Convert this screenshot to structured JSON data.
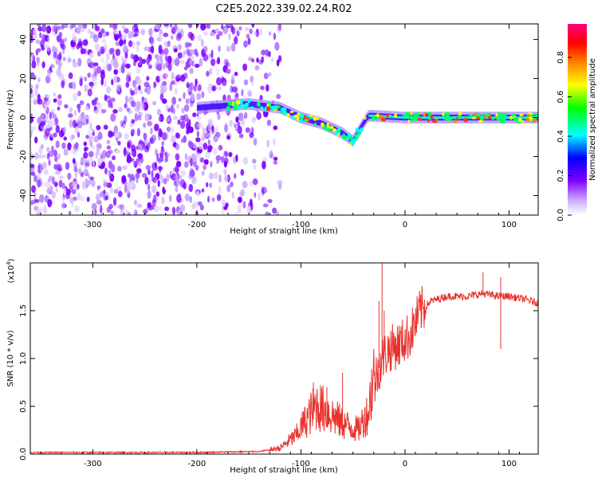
{
  "title": "C2E5.2022.339.02.24.R02",
  "chart_data": [
    {
      "type": "heatmap",
      "xlabel": "Height of straight line (km)",
      "ylabel": "Frequency (Hz)",
      "xlim": [
        -360,
        128
      ],
      "ylim": [
        -50,
        48
      ],
      "xticks": [
        -300,
        -200,
        -100,
        0,
        100
      ],
      "yticks": [
        -40,
        -20,
        0,
        20,
        40
      ],
      "colorbar": {
        "label": "Normalized spectral amplitude",
        "range": [
          0,
          0.97
        ],
        "ticks": [
          0.0,
          0.2,
          0.4,
          0.6,
          0.8
        ],
        "colors": [
          "#ffffff",
          "#c9a8ff",
          "#7f00ff",
          "#0000ff",
          "#00ffff",
          "#00ff00",
          "#ffff00",
          "#ff8000",
          "#ff0000",
          "#ff00a0"
        ]
      },
      "noise_region": {
        "x": [
          -360,
          -120
        ],
        "y": [
          -50,
          48
        ]
      },
      "signal_track": [
        {
          "x": -200,
          "y": 5
        },
        {
          "x": -150,
          "y": 7
        },
        {
          "x": -120,
          "y": 5
        },
        {
          "x": -100,
          "y": 0
        },
        {
          "x": -80,
          "y": -3
        },
        {
          "x": -60,
          "y": -8
        },
        {
          "x": -50,
          "y": -12
        },
        {
          "x": -40,
          "y": -3
        },
        {
          "x": -35,
          "y": 1
        },
        {
          "x": 0,
          "y": 0
        },
        {
          "x": 50,
          "y": 0
        },
        {
          "x": 100,
          "y": 0
        },
        {
          "x": 128,
          "y": 0
        }
      ]
    },
    {
      "type": "line",
      "xlabel": "Height of straight line (km)",
      "ylabel": "SNR (10 * v/v)",
      "multiplier": "(x10",
      "multiplier_exp": "4",
      "multiplier_close": ")",
      "xlim": [
        -360,
        128
      ],
      "ylim": [
        0,
        2.0
      ],
      "xticks": [
        -300,
        -200,
        -100,
        0,
        100
      ],
      "yticks": [
        0.0,
        0.5,
        1.0,
        1.5
      ],
      "color": "#e8322d",
      "series": [
        {
          "values": [
            [
              -360,
              0.01
            ],
            [
              -300,
              0.01
            ],
            [
              -200,
              0.01
            ],
            [
              -140,
              0.02
            ],
            [
              -120,
              0.05
            ],
            [
              -105,
              0.15
            ],
            [
              -95,
              0.28
            ],
            [
              -85,
              0.4
            ],
            [
              -75,
              0.35
            ],
            [
              -60,
              0.25
            ],
            [
              -45,
              0.2
            ],
            [
              -35,
              0.35
            ],
            [
              -28,
              0.8
            ],
            [
              -22,
              1.0
            ],
            [
              -15,
              1.1
            ],
            [
              -5,
              1.15
            ],
            [
              5,
              1.25
            ],
            [
              15,
              1.5
            ],
            [
              25,
              1.6
            ],
            [
              40,
              1.65
            ],
            [
              60,
              1.65
            ],
            [
              75,
              1.68
            ],
            [
              90,
              1.65
            ],
            [
              100,
              1.65
            ],
            [
              115,
              1.62
            ],
            [
              128,
              1.58
            ]
          ]
        }
      ],
      "spikes": [
        [
          -22,
          2.0
        ],
        [
          -25,
          1.6
        ],
        [
          -20,
          1.5
        ],
        [
          -60,
          0.85
        ],
        [
          -75,
          0.7
        ],
        [
          -88,
          0.75
        ],
        [
          75,
          1.9
        ],
        [
          92,
          1.85
        ],
        [
          92,
          1.1
        ]
      ]
    }
  ]
}
